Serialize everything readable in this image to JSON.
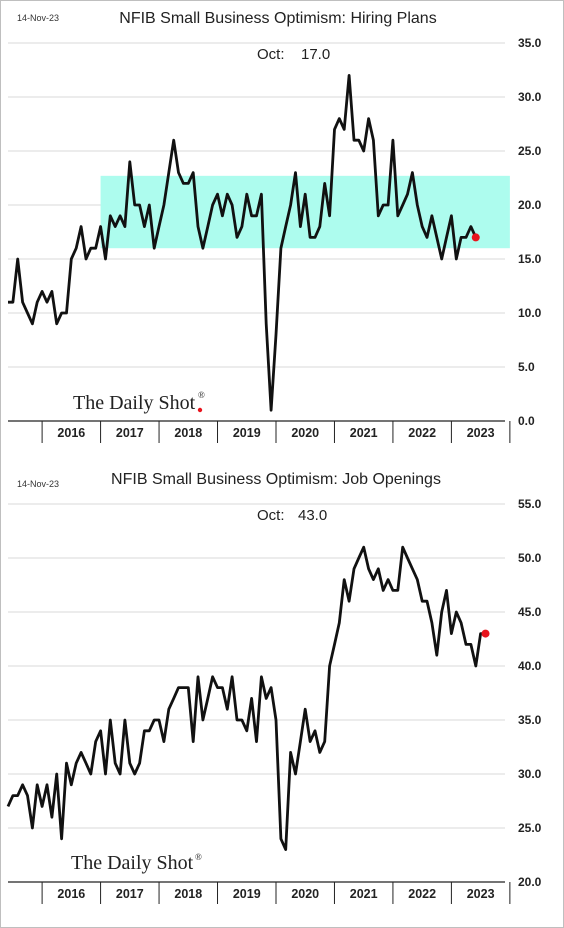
{
  "colors": {
    "line": "#111111",
    "last_point": "#e8141d",
    "band": "#adfcee",
    "grid": "#d9d9d9",
    "axis": "#222222"
  },
  "brand": {
    "name": "The Daily Shot",
    "reg": "®"
  },
  "chart_data": [
    {
      "type": "line",
      "date_stamp": "14-Nov-23",
      "title": "NFIB Small Business Optimism: Hiring Plans",
      "latest": {
        "label": "Oct:",
        "value": "17.0"
      },
      "ylim": [
        0,
        35
      ],
      "yticks": [
        "0.0",
        "5.0",
        "10.0",
        "15.0",
        "20.0",
        "25.0",
        "30.0",
        "35.0"
      ],
      "x_labels": [
        "2016",
        "2017",
        "2018",
        "2019",
        "2020",
        "2021",
        "2022",
        "2023"
      ],
      "x_start": "2015-06",
      "x_end": "2023-12",
      "grid": true,
      "band": {
        "from_year": 2017,
        "to_year": 2023,
        "y_low": 16,
        "y_high": 22.7
      },
      "series": [
        {
          "start": "2015-06",
          "values": [
            11,
            11,
            15,
            11,
            10,
            9,
            11,
            12,
            11,
            12,
            9,
            10,
            10,
            15,
            16,
            18,
            15,
            16,
            16,
            18,
            15,
            19,
            18,
            19,
            18,
            24,
            20,
            20,
            18,
            20,
            16,
            18,
            20,
            23,
            26,
            23,
            22,
            22,
            23,
            18,
            16,
            18,
            20,
            21,
            19,
            21,
            20,
            17,
            18,
            21,
            19,
            19,
            21,
            9,
            1,
            8,
            16,
            18,
            20,
            23,
            18,
            21,
            17,
            17,
            18,
            22,
            19,
            27,
            28,
            27,
            32,
            26,
            26,
            25,
            28,
            26,
            19,
            20,
            20,
            26,
            19,
            20,
            21,
            23,
            20,
            18,
            17,
            19,
            17,
            15,
            17,
            19,
            15,
            17,
            17,
            18,
            17
          ]
        }
      ]
    },
    {
      "type": "line",
      "date_stamp": "14-Nov-23",
      "title": "NFIB Small Business Optimism: Job Openings",
      "latest": {
        "label": "Oct:",
        "value": "43.0"
      },
      "ylim": [
        20,
        55
      ],
      "yticks": [
        "20.0",
        "25.0",
        "30.0",
        "35.0",
        "40.0",
        "45.0",
        "50.0",
        "55.0"
      ],
      "x_labels": [
        "2016",
        "2017",
        "2018",
        "2019",
        "2020",
        "2021",
        "2022",
        "2023"
      ],
      "x_start": "2015-06",
      "x_end": "2023-12",
      "grid": true,
      "series": [
        {
          "start": "2015-06",
          "values": [
            27,
            28,
            28,
            29,
            28,
            25,
            29,
            27,
            29,
            26,
            30,
            24,
            31,
            29,
            31,
            32,
            31,
            30,
            33,
            34,
            30,
            35,
            31,
            30,
            35,
            31,
            30,
            31,
            34,
            34,
            35,
            35,
            33,
            36,
            37,
            38,
            38,
            38,
            33,
            39,
            35,
            37,
            39,
            38,
            38,
            36,
            39,
            35,
            35,
            34,
            37,
            33,
            39,
            37,
            38,
            35,
            24,
            23,
            32,
            30,
            33,
            36,
            33,
            34,
            32,
            33,
            40,
            42,
            44,
            48,
            46,
            49,
            50,
            51,
            49,
            48,
            49,
            47,
            48,
            47,
            47,
            51,
            50,
            49,
            48,
            46,
            46,
            44,
            41,
            45,
            47,
            43,
            45,
            44,
            42,
            42,
            40,
            43,
            43
          ]
        }
      ]
    }
  ]
}
